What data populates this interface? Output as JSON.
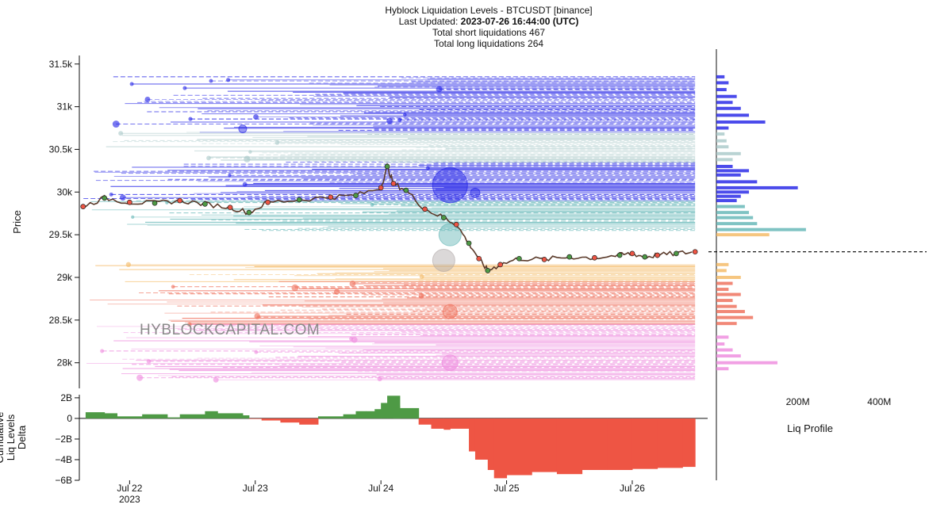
{
  "header": {
    "title": "Hyblock Liquidation Levels - BTCUSDT [binance]",
    "updated_prefix": "Last Updated: ",
    "updated_value": "2023-07-26 16:44:00 (UTC)",
    "short_liqs": "Total short liquidations 467",
    "long_liqs": "Total long liquidations 264"
  },
  "watermark": "HYBLOCKCAPITAL.COM",
  "colors": {
    "short_far": "#1e1ee6",
    "short_mid": "#5fb4b4",
    "short_near": "#a8c8c8",
    "long_near": "#f4b860",
    "long_mid": "#ee6a55",
    "long_far": "#ee88dd",
    "price_line": "#5a3a2a",
    "delta_pos": "#4e9a45",
    "delta_neg": "#ee5544",
    "current_price_line": "#000000"
  },
  "chart_data": [
    {
      "type": "line",
      "panel": "main",
      "ylabel": "Price",
      "y_ticks": [
        "31.5k",
        "31k",
        "30.5k",
        "30k",
        "29.5k",
        "29k",
        "28.5k",
        "28k"
      ],
      "y_tick_values": [
        31500,
        31000,
        30500,
        30000,
        29500,
        29000,
        28500,
        28000
      ],
      "ylim": [
        27700,
        31600
      ],
      "x_ticks": [
        "Jul 22",
        "Jul 23",
        "Jul 24",
        "Jul 25",
        "Jul 26"
      ],
      "x_year": "2023",
      "x_tick_values": [
        1,
        2,
        3,
        4,
        5
      ],
      "xlim": [
        0.6,
        5.6
      ],
      "series": [
        {
          "x": [
            0.63,
            0.8,
            1.0,
            1.2,
            1.4,
            1.6,
            1.8,
            1.95,
            2.1,
            2.35,
            2.6,
            2.8,
            3.0,
            3.05,
            3.1,
            3.2,
            3.35,
            3.5,
            3.6,
            3.7,
            3.78,
            3.85,
            3.95,
            4.1,
            4.3,
            4.5,
            4.7,
            4.9,
            5.0,
            5.1,
            5.2,
            5.35,
            5.5
          ],
          "y": [
            29830,
            29930,
            29880,
            29870,
            29900,
            29860,
            29820,
            29760,
            29880,
            29910,
            29940,
            29960,
            30050,
            30300,
            30100,
            30020,
            29800,
            29700,
            29620,
            29400,
            29220,
            29080,
            29150,
            29220,
            29210,
            29240,
            29230,
            29260,
            29280,
            29240,
            29260,
            29280,
            29300
          ]
        }
      ],
      "short_levels": {
        "price_range": [
          29550,
          31350
        ],
        "bands": [
          {
            "from": 29550,
            "to": 29900,
            "color": "mid"
          },
          {
            "from": 29900,
            "to": 30350,
            "color": "far"
          },
          {
            "from": 30350,
            "to": 30700,
            "color": "near"
          },
          {
            "from": 30700,
            "to": 31350,
            "color": "far"
          }
        ]
      },
      "long_levels": {
        "price_range": [
          27800,
          29150
        ],
        "bands": [
          {
            "from": 28950,
            "to": 29150,
            "color": "near"
          },
          {
            "from": 28450,
            "to": 28950,
            "color": "mid"
          },
          {
            "from": 27800,
            "to": 28450,
            "color": "far"
          }
        ]
      },
      "current_price": 29300
    },
    {
      "type": "area",
      "panel": "delta",
      "ylabel": "Cumulative Liq Levels Delta",
      "y_ticks": [
        "2B",
        "0",
        "−2B",
        "−4B",
        "−6B"
      ],
      "y_tick_values": [
        2,
        0,
        -2,
        -4,
        -6
      ],
      "ylim": [
        -6,
        2.3
      ],
      "x": [
        0.65,
        0.8,
        0.9,
        1.1,
        1.3,
        1.4,
        1.6,
        1.7,
        1.9,
        1.95,
        2.05,
        2.2,
        2.35,
        2.5,
        2.7,
        2.8,
        2.88,
        2.95,
        3.0,
        3.05,
        3.15,
        3.1,
        3.25,
        3.3,
        3.4,
        3.5,
        3.55,
        3.7,
        3.75,
        3.85,
        3.9,
        4.0,
        4.2,
        4.4,
        4.6,
        4.8,
        5.0,
        5.2,
        5.4,
        5.5
      ],
      "values": [
        0.6,
        0.5,
        0.2,
        0.4,
        0.1,
        0.4,
        0.7,
        0.5,
        0.3,
        -0.05,
        -0.2,
        -0.4,
        -0.6,
        0.2,
        0.4,
        0.7,
        0.7,
        0.9,
        1.5,
        2.2,
        1.2,
        1.0,
        1.0,
        -0.6,
        -1.0,
        -1.1,
        -1.0,
        -3.2,
        -4.0,
        -5.0,
        -5.8,
        -5.5,
        -5.2,
        -5.4,
        -5.0,
        -5.0,
        -4.9,
        -4.8,
        -4.7,
        -4.7
      ]
    },
    {
      "type": "bar",
      "panel": "liq_profile",
      "xlabel": "Liq Profile",
      "x_ticks": [
        "200M",
        "400M"
      ],
      "x_tick_values": [
        200,
        400
      ],
      "xlim": [
        0,
        530
      ],
      "orientation": "horizontal",
      "price_levels": [
        31350,
        31280,
        31200,
        31120,
        31050,
        30980,
        30900,
        30820,
        30750,
        30680,
        30600,
        30530,
        30450,
        30380,
        30300,
        30250,
        30200,
        30120,
        30050,
        30000,
        29950,
        29900,
        29830,
        29760,
        29700,
        29630,
        29560,
        29500,
        29150,
        29080,
        29000,
        28930,
        28860,
        28800,
        28730,
        28660,
        28600,
        28530,
        28460,
        28300,
        28220,
        28150,
        28080,
        28000,
        27930
      ],
      "values": [
        20,
        30,
        25,
        50,
        40,
        60,
        80,
        120,
        30,
        20,
        25,
        30,
        60,
        40,
        40,
        80,
        60,
        100,
        200,
        80,
        60,
        50,
        70,
        80,
        90,
        100,
        220,
        130,
        30,
        25,
        60,
        40,
        30,
        60,
        40,
        50,
        70,
        90,
        50,
        30,
        20,
        40,
        60,
        150,
        30
      ]
    }
  ]
}
